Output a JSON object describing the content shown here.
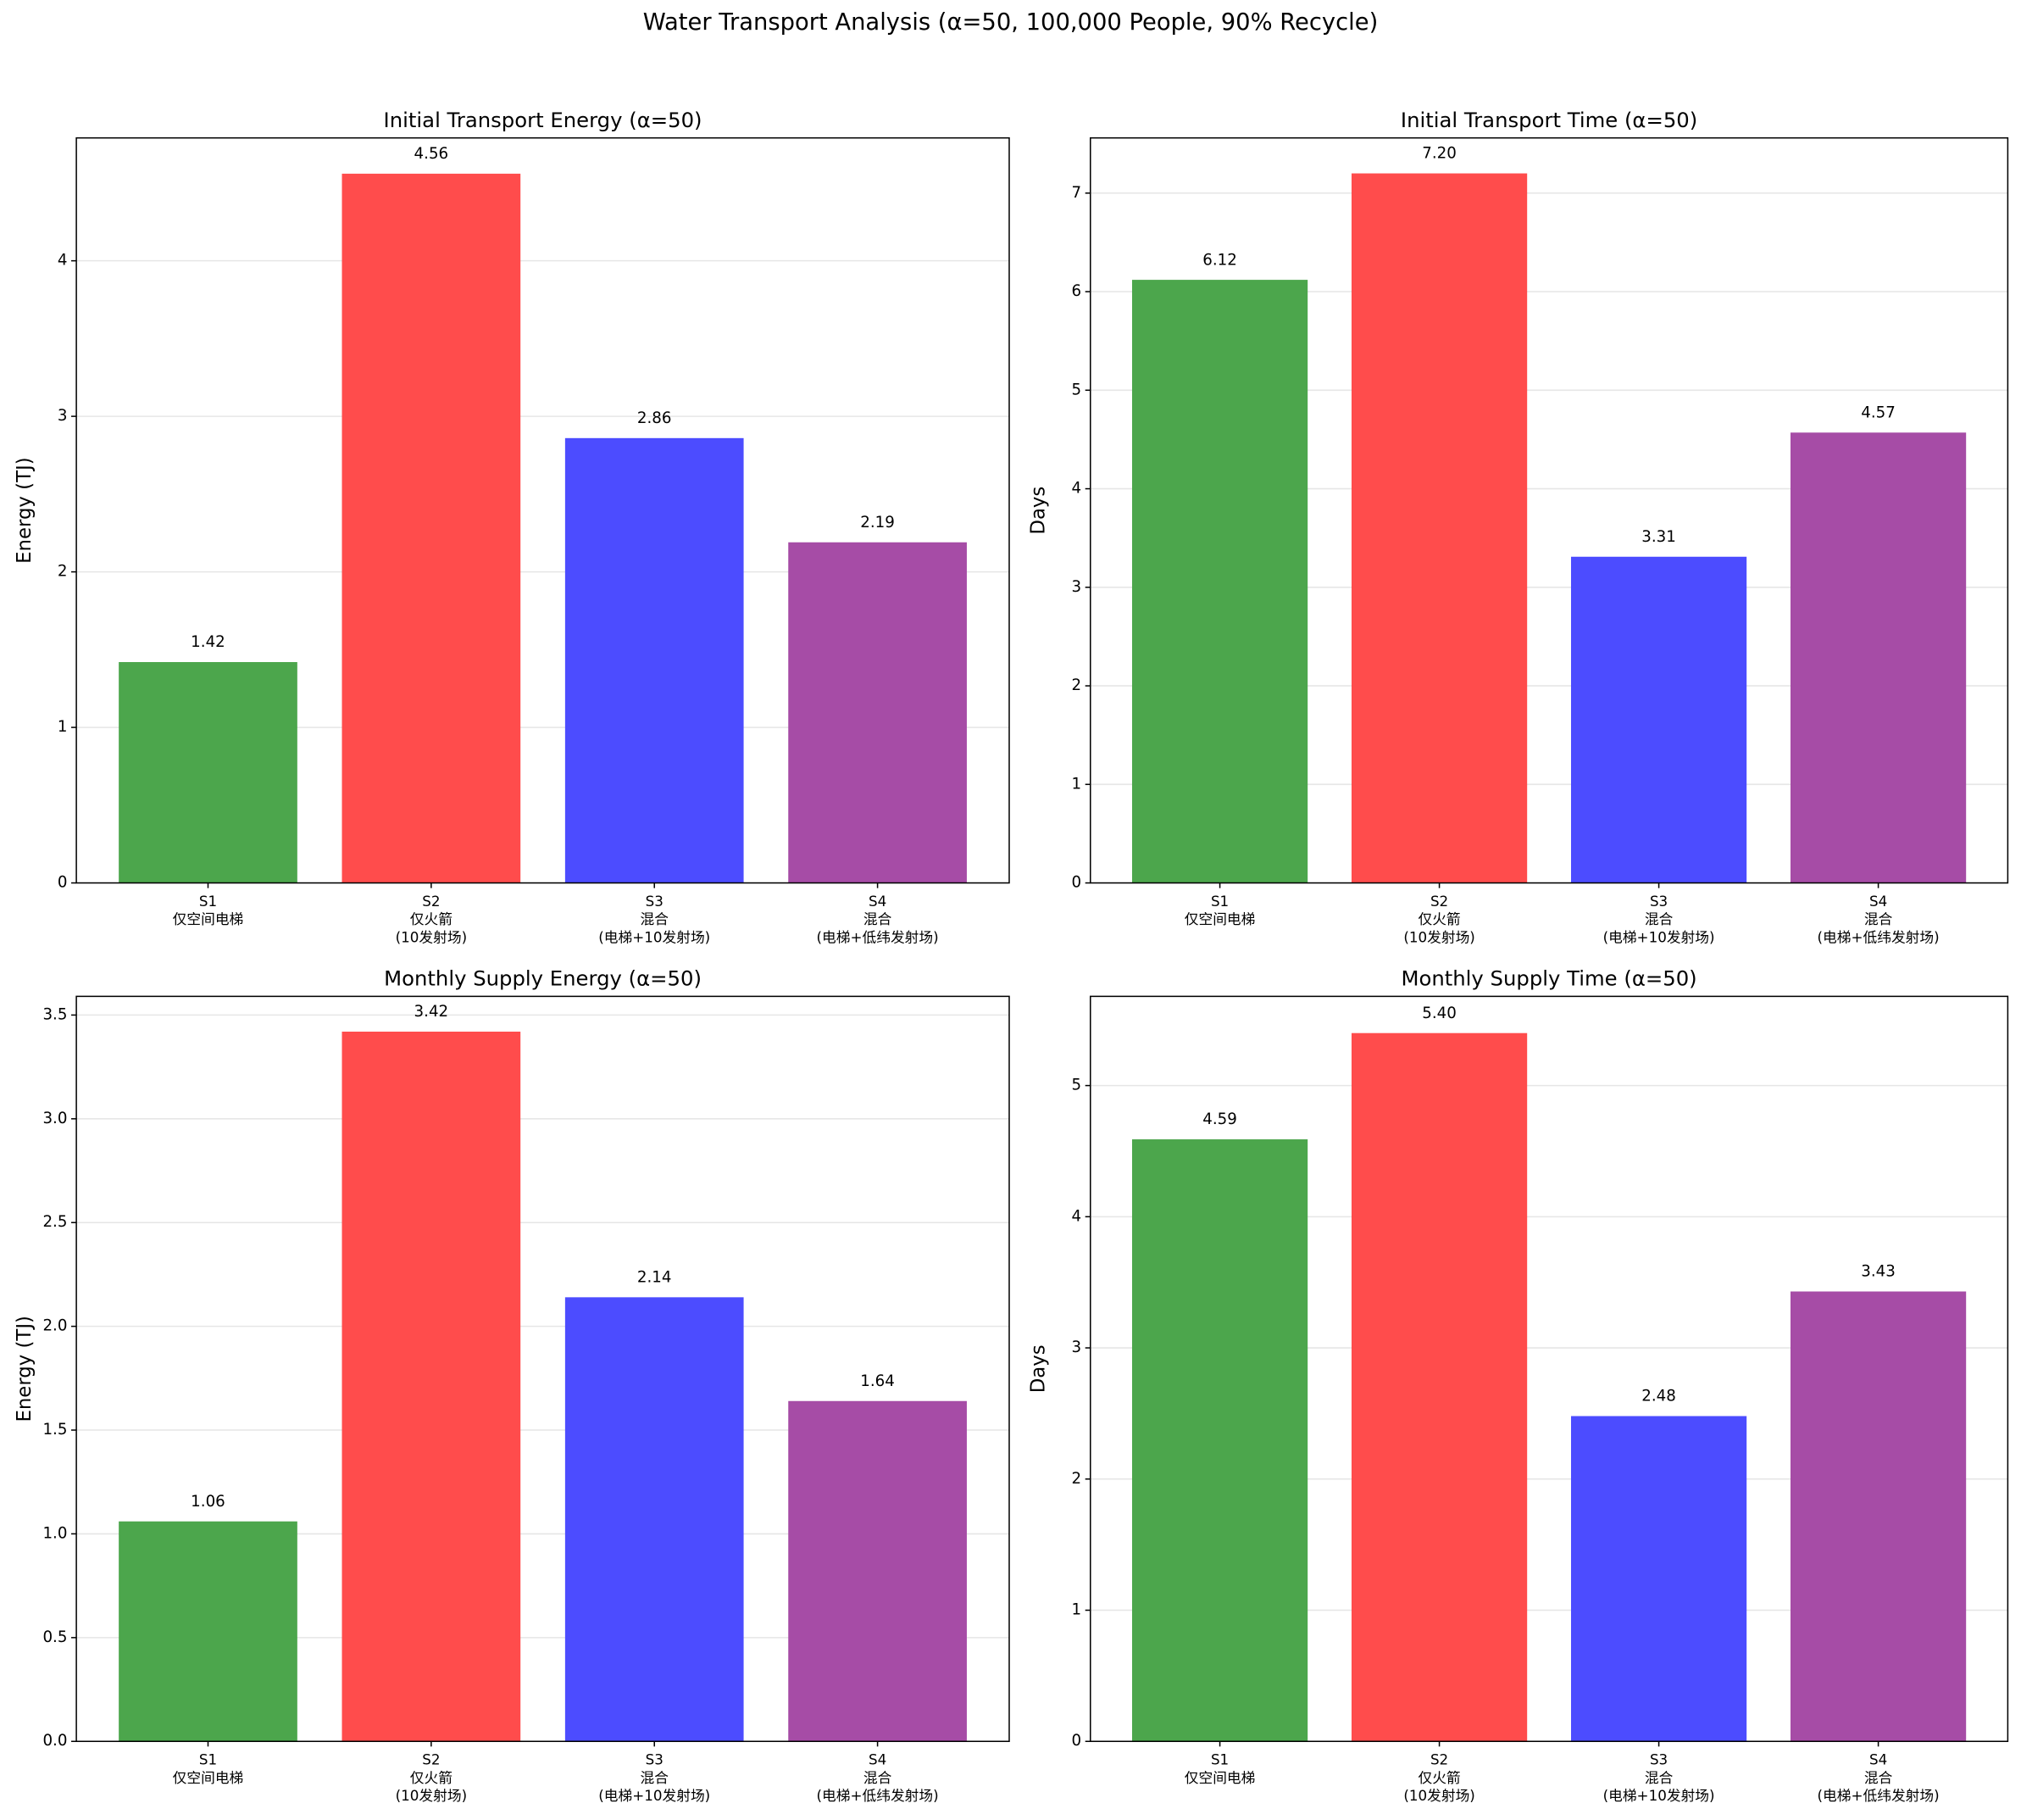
{
  "title": "Water Transport Analysis (α=50, 100,000 People, 90% Recycle)",
  "chart_data": [
    {
      "type": "bar",
      "title": "Initial Transport Energy (α=50)",
      "y_label": "Energy (TJ)",
      "categories": [
        [
          "S1",
          "仅空间电梯"
        ],
        [
          "S2",
          "仅火箭",
          "(10发射场)"
        ],
        [
          "S3",
          "混合",
          "(电梯+10发射场)"
        ],
        [
          "S4",
          "混合",
          "(电梯+低纬发射场)"
        ]
      ],
      "values": [
        1.42,
        4.56,
        2.86,
        2.19
      ],
      "value_labels": [
        "1.42",
        "4.56",
        "2.86",
        "2.19"
      ],
      "colors": [
        "#4ca64c",
        "#ff4c4c",
        "#4c4cff",
        "#a64ca6"
      ],
      "ylim": [
        0,
        4.79
      ],
      "yticks": [
        0,
        1,
        2,
        3,
        4
      ],
      "grid": true
    },
    {
      "type": "bar",
      "title": "Initial Transport Time (α=50)",
      "y_label": "Days",
      "categories": [
        [
          "S1",
          "仅空间电梯"
        ],
        [
          "S2",
          "仅火箭",
          "(10发射场)"
        ],
        [
          "S3",
          "混合",
          "(电梯+10发射场)"
        ],
        [
          "S4",
          "混合",
          "(电梯+低纬发射场)"
        ]
      ],
      "values": [
        6.12,
        7.2,
        3.31,
        4.57
      ],
      "value_labels": [
        "6.12",
        "7.20",
        "3.31",
        "4.57"
      ],
      "colors": [
        "#4ca64c",
        "#ff4c4c",
        "#4c4cff",
        "#a64ca6"
      ],
      "ylim": [
        0,
        7.56
      ],
      "yticks": [
        0,
        1,
        2,
        3,
        4,
        5,
        6,
        7
      ],
      "grid": true
    },
    {
      "type": "bar",
      "title": "Monthly Supply Energy (α=50)",
      "y_label": "Energy (TJ)",
      "categories": [
        [
          "S1",
          "仅空间电梯"
        ],
        [
          "S2",
          "仅火箭",
          "(10发射场)"
        ],
        [
          "S3",
          "混合",
          "(电梯+10发射场)"
        ],
        [
          "S4",
          "混合",
          "(电梯+低纬发射场)"
        ]
      ],
      "values": [
        1.06,
        3.42,
        2.14,
        1.64
      ],
      "value_labels": [
        "1.06",
        "3.42",
        "2.14",
        "1.64"
      ],
      "colors": [
        "#4ca64c",
        "#ff4c4c",
        "#4c4cff",
        "#a64ca6"
      ],
      "ylim": [
        0,
        3.59
      ],
      "yticks": [
        {
          "value": 0,
          "label": "0.0"
        },
        0.5,
        {
          "value": 1,
          "label": "1.0"
        },
        1.5,
        {
          "value": 2,
          "label": "2.0"
        },
        2.5,
        {
          "value": 3,
          "label": "3.0"
        },
        3.5
      ],
      "grid": true
    },
    {
      "type": "bar",
      "title": "Monthly Supply Time (α=50)",
      "y_label": "Days",
      "categories": [
        [
          "S1",
          "仅空间电梯"
        ],
        [
          "S2",
          "仅火箭",
          "(10发射场)"
        ],
        [
          "S3",
          "混合",
          "(电梯+10发射场)"
        ],
        [
          "S4",
          "混合",
          "(电梯+低纬发射场)"
        ]
      ],
      "values": [
        4.59,
        5.4,
        2.48,
        3.43
      ],
      "value_labels": [
        "4.59",
        "5.40",
        "2.48",
        "3.43"
      ],
      "colors": [
        "#4ca64c",
        "#ff4c4c",
        "#4c4cff",
        "#a64ca6"
      ],
      "ylim": [
        0,
        5.68
      ],
      "yticks": [
        0,
        1,
        2,
        3,
        4,
        5
      ],
      "grid": true
    }
  ]
}
